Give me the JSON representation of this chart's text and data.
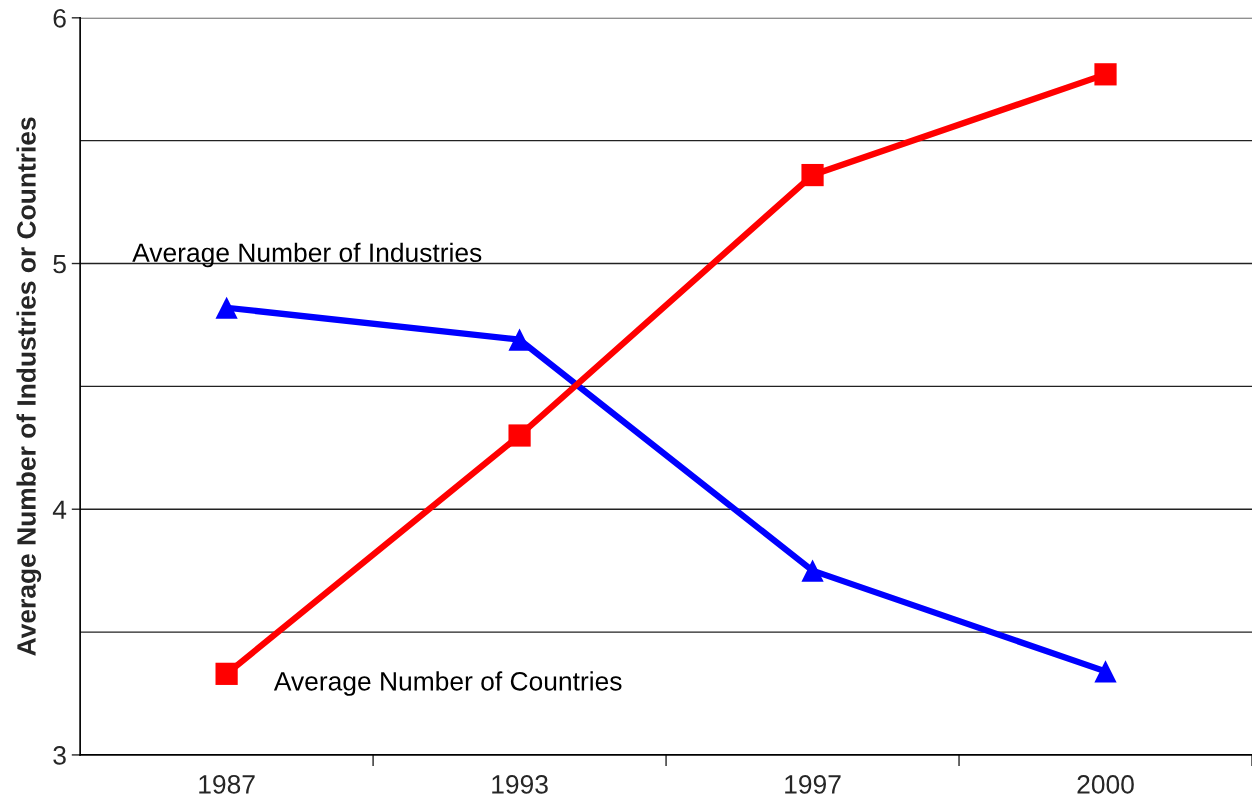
{
  "chart_data": {
    "type": "line",
    "ylabel": "Average Number of Industries or Countries",
    "categories": [
      "1987",
      "1993",
      "1997",
      "2000"
    ],
    "series": [
      {
        "name": "Average Number of Industries",
        "color": "#0000ff",
        "marker": "triangle",
        "values": [
          4.82,
          4.69,
          3.75,
          3.34
        ]
      },
      {
        "name": "Average Number of Countries",
        "color": "#ff0000",
        "marker": "square",
        "values": [
          3.33,
          4.3,
          5.36,
          5.77
        ]
      }
    ],
    "ylim": [
      3,
      6
    ],
    "yticks": [
      3,
      {
        "value": 3.5,
        "label": null
      },
      4,
      {
        "value": 4.5,
        "label": null
      },
      5,
      {
        "value": 5.5,
        "label": null
      },
      6
    ],
    "grid": "y",
    "line_style": "solid"
  }
}
